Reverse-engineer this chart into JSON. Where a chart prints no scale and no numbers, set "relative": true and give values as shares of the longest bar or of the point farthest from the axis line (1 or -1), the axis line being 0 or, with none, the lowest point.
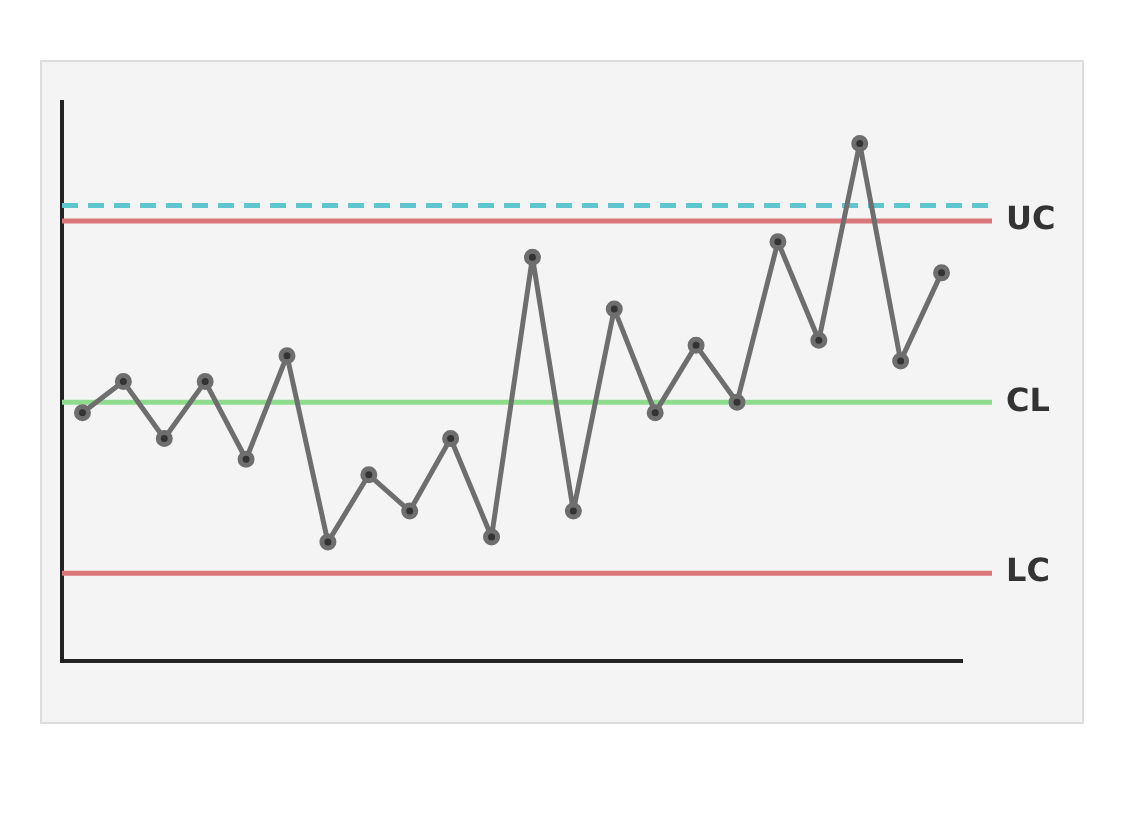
{
  "chart_data": {
    "type": "line",
    "relative": true,
    "categories": [
      null,
      null,
      null,
      null,
      null,
      null,
      null,
      null,
      null,
      null,
      null,
      null,
      null,
      null,
      null,
      null,
      null,
      null,
      null,
      null,
      null,
      null
    ],
    "series": [
      {
        "color": "#6e6e6e",
        "values": [
          0.48,
          0.54,
          0.43,
          0.54,
          0.39,
          0.59,
          0.23,
          0.36,
          0.29,
          0.43,
          0.24,
          0.78,
          0.29,
          0.68,
          0.48,
          0.61,
          0.5,
          0.81,
          0.62,
          1,
          0.58,
          0.75
        ]
      }
    ],
    "marker": "circle",
    "line_style": "solid",
    "grid": false,
    "legend": false,
    "ref_lines": [
      {
        "axis": "y",
        "value": 0.85,
        "label": "UC",
        "color": "#d9767a"
      },
      {
        "axis": "y",
        "value": 0.88,
        "color": "#5fc6d0",
        "line_style": "dashed"
      },
      {
        "axis": "y",
        "value": 0.5,
        "label": "CL",
        "color": "#8fdc8f"
      },
      {
        "axis": "y",
        "value": 0.17,
        "label": "LC",
        "color": "#d9767a"
      }
    ]
  }
}
